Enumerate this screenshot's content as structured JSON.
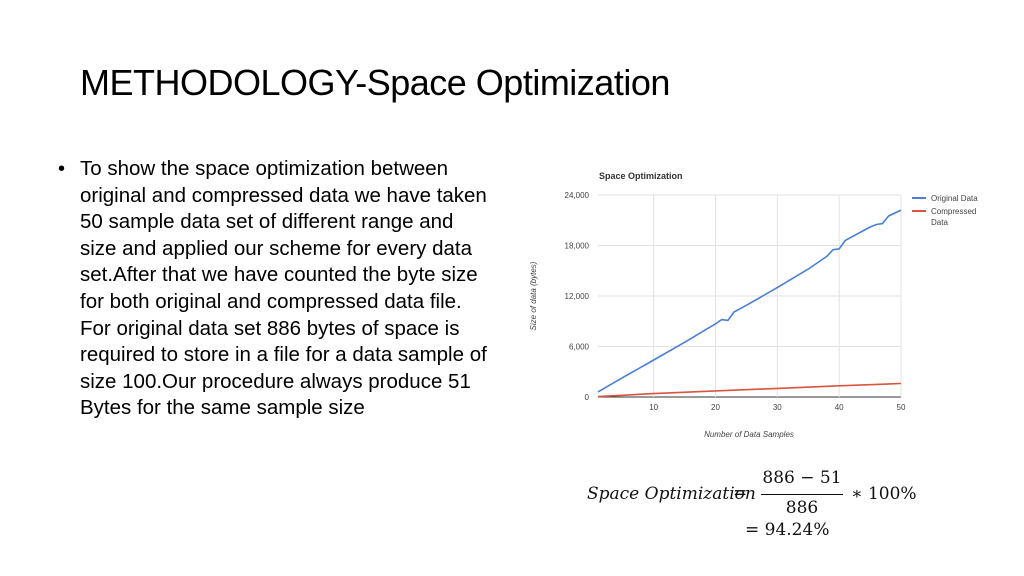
{
  "slide": {
    "title": "METHODOLOGY-Space Optimization",
    "bullet_symbol": "•",
    "bullet_text": "To show the space optimization between original and compressed data we have taken 50 sample data set of different range and size and applied our scheme for every data set.After that we have counted the byte size for both original and compressed data file. For original data set 886 bytes of space is required to store in a file for a data sample of size 100.Our procedure always produce 51 Bytes for the same sample size"
  },
  "formula": {
    "lhs": "Space Optimization",
    "equals": "=",
    "numerator": "886 − 51",
    "denominator": "886",
    "multiplier": "∗ 100%",
    "result": "= 94.24%"
  },
  "chart_data": {
    "type": "line",
    "title": "Space Optimization",
    "xlabel": "Number of Data Samples",
    "ylabel": "Size of data (bytes)",
    "xlim": [
      1,
      50
    ],
    "ylim": [
      0,
      24000
    ],
    "x_ticks": [
      10,
      20,
      30,
      40,
      50
    ],
    "x_tick_labels": [
      "10",
      "20",
      "30",
      "40",
      "50"
    ],
    "y_ticks": [
      0,
      6000,
      12000,
      18000,
      24000
    ],
    "y_tick_labels": [
      "0",
      "6,000",
      "12,000",
      "18,000",
      "24,000"
    ],
    "grid": true,
    "legend_position": "right",
    "series": [
      {
        "name": "Original Data",
        "color": "#4a7fd8",
        "points": [
          [
            1,
            600
          ],
          [
            5,
            2300
          ],
          [
            10,
            4400
          ],
          [
            15,
            6500
          ],
          [
            20,
            8700
          ],
          [
            21,
            9200
          ],
          [
            22,
            9100
          ],
          [
            23,
            10100
          ],
          [
            25,
            10900
          ],
          [
            30,
            13000
          ],
          [
            35,
            15200
          ],
          [
            38,
            16700
          ],
          [
            39,
            17500
          ],
          [
            40,
            17600
          ],
          [
            41,
            18600
          ],
          [
            45,
            20200
          ],
          [
            46,
            20500
          ],
          [
            47,
            20600
          ],
          [
            48,
            21500
          ],
          [
            50,
            22200
          ]
        ]
      },
      {
        "name": "Compressed Data",
        "color": "#d9553f",
        "points": [
          [
            1,
            50
          ],
          [
            10,
            400
          ],
          [
            20,
            720
          ],
          [
            30,
            1020
          ],
          [
            40,
            1330
          ],
          [
            50,
            1600
          ]
        ]
      }
    ]
  }
}
